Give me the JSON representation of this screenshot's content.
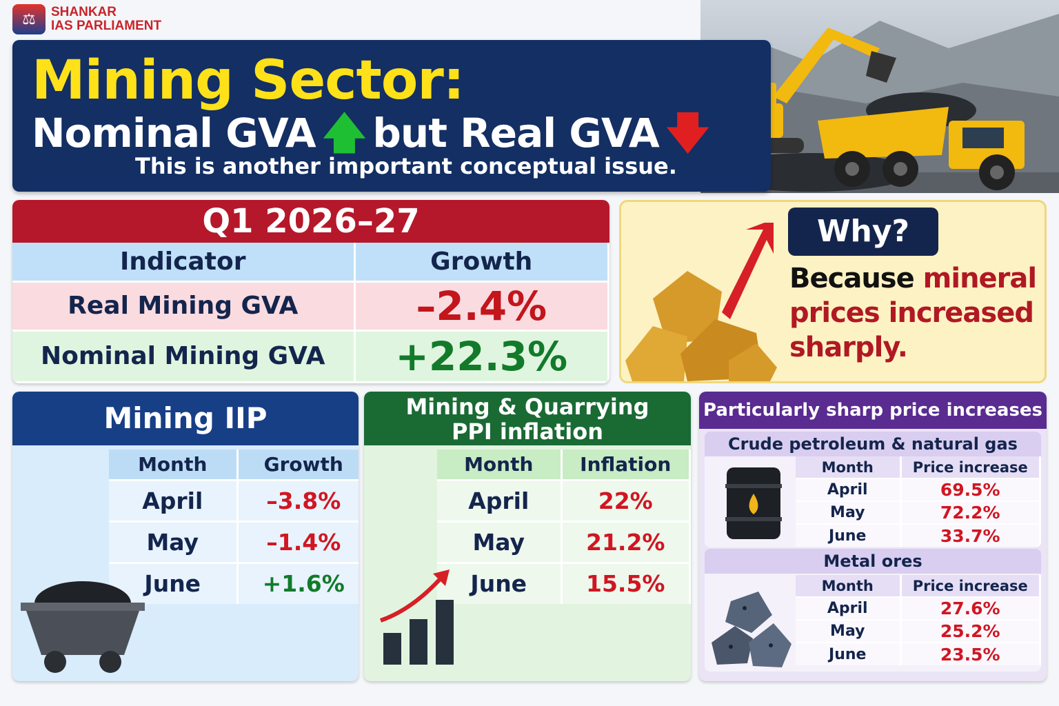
{
  "brand": {
    "line1": "SHANKAR",
    "line2": "IAS PARLIAMENT"
  },
  "banner": {
    "title": "Mining Sector:",
    "sub_a": "Nominal GVA",
    "sub_b": "but Real GVA",
    "note": "This is another important conceptual issue."
  },
  "q1": {
    "heading": "Q1 2026–27",
    "col_indicator": "Indicator",
    "col_growth": "Growth",
    "rows": [
      {
        "label": "Real Mining GVA",
        "value": "–2.4%"
      },
      {
        "label": "Nominal Mining GVA",
        "value": "+22.3%"
      }
    ]
  },
  "why": {
    "pill": "Why?",
    "text_a": "Because",
    "text_b": "mineral prices increased sharply."
  },
  "iip": {
    "heading": "Mining IIP",
    "col_month": "Month",
    "col_growth": "Growth",
    "rows": [
      {
        "month": "April",
        "value": "–3.8%"
      },
      {
        "month": "May",
        "value": "–1.4%"
      },
      {
        "month": "June",
        "value": "+1.6%"
      }
    ]
  },
  "ppi": {
    "heading_1": "Mining & Quarrying",
    "heading_2": "PPI inflation",
    "col_month": "Month",
    "col_inflation": "Inflation",
    "rows": [
      {
        "month": "April",
        "value": "22%"
      },
      {
        "month": "May",
        "value": "21.2%"
      },
      {
        "month": "June",
        "value": "15.5%"
      }
    ]
  },
  "sharp": {
    "heading": "Particularly sharp price increases",
    "crude": {
      "title": "Crude petroleum & natural gas",
      "col_month": "Month",
      "col_price": "Price increase",
      "rows": [
        {
          "month": "April",
          "value": "69.5%"
        },
        {
          "month": "May",
          "value": "72.2%"
        },
        {
          "month": "June",
          "value": "33.7%"
        }
      ]
    },
    "metal": {
      "title": "Metal ores",
      "col_month": "Month",
      "col_price": "Price increase",
      "rows": [
        {
          "month": "April",
          "value": "27.6%"
        },
        {
          "month": "May",
          "value": "25.2%"
        },
        {
          "month": "June",
          "value": "23.5%"
        }
      ]
    }
  },
  "icons": [
    "up-arrow-icon",
    "down-arrow-icon",
    "gold-nugget-icon",
    "mine-cart-icon",
    "bar-chart-icon",
    "oil-barrel-icon",
    "metal-ore-icon",
    "excavator-truck-illustration"
  ],
  "colors": {
    "navy": "#132f63",
    "yellow": "#ffe11a",
    "red": "#d01622",
    "green": "#127a2a",
    "purple": "#5a2b90"
  }
}
